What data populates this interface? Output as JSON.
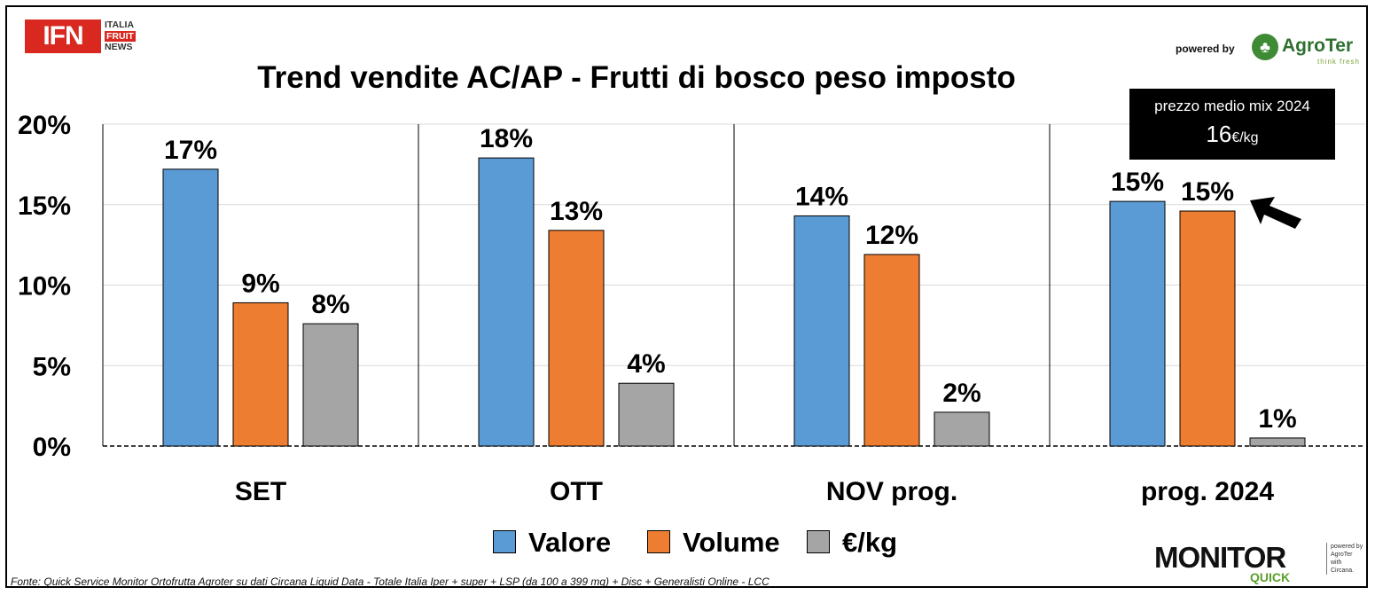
{
  "header": {
    "logo_main": "IFN",
    "logo_lines": [
      "ITALIA",
      "FRUIT",
      "NEWS"
    ],
    "powered_by": "powered by",
    "agroter_name": "AgroTer",
    "agroter_tagline": "think fresh"
  },
  "price_box": {
    "label": "prezzo medio mix 2024",
    "value": "16",
    "unit": "€/kg"
  },
  "footer": {
    "monitor_word": "MONITOR",
    "monitor_sub": "QUICK",
    "monitor_side": [
      "powered by",
      "AgroTer",
      "with",
      "Circana."
    ],
    "source": "Fonte: Quick Service Monitor Ortofrutta Agroter su dati Circana Liquid Data - Totale Italia Iper + super + LSP (da 100 a 399 mq) + Disc + Generalisti Online - LCC"
  },
  "colors": {
    "valore": "#5b9bd5",
    "volume": "#ed7d31",
    "prezzo": "#a5a5a5"
  },
  "chart_data": {
    "type": "bar",
    "title": "Trend vendite AC/AP - Frutti di bosco peso imposto",
    "categories": [
      "SET",
      "OTT",
      "NOV prog.",
      "prog. 2024"
    ],
    "series": [
      {
        "name": "Valore",
        "values": [
          17.2,
          17.9,
          14.3,
          15.2
        ],
        "labels": [
          "17%",
          "18%",
          "14%",
          "15%"
        ]
      },
      {
        "name": "Volume",
        "values": [
          8.9,
          13.4,
          11.9,
          14.6
        ],
        "labels": [
          "9%",
          "13%",
          "12%",
          "15%"
        ]
      },
      {
        "name": "€/kg",
        "values": [
          7.6,
          3.9,
          2.1,
          0.5
        ],
        "labels": [
          "8%",
          "4%",
          "2%",
          "1%"
        ]
      }
    ],
    "yticks": [
      "0%",
      "5%",
      "10%",
      "15%",
      "20%"
    ],
    "ylim": [
      0,
      20
    ],
    "grid": true,
    "legend": "bottom"
  }
}
